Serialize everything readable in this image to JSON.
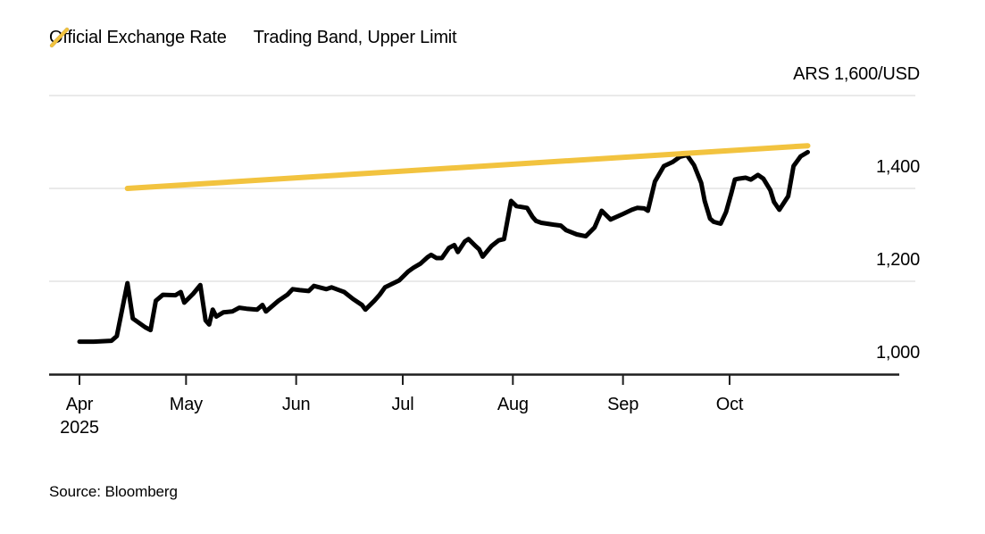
{
  "legend": {
    "items": [
      {
        "label": "Official Exchange Rate",
        "swatch": "black-slash-icon",
        "color": "#000000"
      },
      {
        "label": "Trading Band, Upper Limit",
        "swatch": "yellow-slash-icon",
        "color": "#F2C33F"
      }
    ]
  },
  "axis_unit_label": "ARS 1,600/USD",
  "source": "Source: Bloomberg",
  "colors": {
    "official": "#000000",
    "band": "#F2C33F",
    "gridline": "#E4E4E4",
    "axis": "#1F1F1F",
    "text": "#000000"
  },
  "chart_data": {
    "type": "line",
    "title": "",
    "xlabel": "",
    "ylabel": "ARS/USD",
    "ylim": [
      1000,
      1600
    ],
    "grid": "horizontal",
    "legend_position": "top-left",
    "x_start_date": "2025-04-01",
    "x_unit": "days since 2025-04-01",
    "x_ticks": [
      {
        "label": "Apr",
        "sublabel": "2025",
        "day": 0
      },
      {
        "label": "May",
        "day": 30
      },
      {
        "label": "Jun",
        "day": 61
      },
      {
        "label": "Jul",
        "day": 91
      },
      {
        "label": "Aug",
        "day": 122
      },
      {
        "label": "Sep",
        "day": 153
      },
      {
        "label": "Oct",
        "day": 183
      }
    ],
    "y_ticks": [
      {
        "label": "1,000",
        "value": 1000
      },
      {
        "label": "1,200",
        "value": 1200
      },
      {
        "label": "1,400",
        "value": 1400
      },
      {
        "label": "ARS 1,600/USD",
        "value": 1600
      }
    ],
    "y_gridline_values": [
      1200,
      1400,
      1600
    ],
    "series": [
      {
        "name": "Official Exchange Rate",
        "color": "#000000",
        "data_name": "official-exchange-rate-line",
        "points": [
          [
            0,
            1070
          ],
          [
            4,
            1070
          ],
          [
            9,
            1072
          ],
          [
            10.5,
            1082
          ],
          [
            13.5,
            1196
          ],
          [
            15,
            1120
          ],
          [
            18.5,
            1101
          ],
          [
            20,
            1095
          ],
          [
            21.5,
            1158
          ],
          [
            23.5,
            1171
          ],
          [
            27,
            1170
          ],
          [
            28.5,
            1177
          ],
          [
            29.5,
            1154
          ],
          [
            32,
            1173
          ],
          [
            34,
            1192
          ],
          [
            35.5,
            1116
          ],
          [
            36.5,
            1107
          ],
          [
            37.5,
            1139
          ],
          [
            38.5,
            1124
          ],
          [
            40.5,
            1133
          ],
          [
            43,
            1135
          ],
          [
            45,
            1143
          ],
          [
            47,
            1141
          ],
          [
            50,
            1139
          ],
          [
            51.5,
            1149
          ],
          [
            52.5,
            1135
          ],
          [
            56,
            1158
          ],
          [
            58.5,
            1171
          ],
          [
            60,
            1183
          ],
          [
            62,
            1181
          ],
          [
            64.5,
            1179
          ],
          [
            66,
            1190
          ],
          [
            69.5,
            1183
          ],
          [
            71,
            1187
          ],
          [
            74.5,
            1177
          ],
          [
            77,
            1162
          ],
          [
            79.5,
            1149
          ],
          [
            80.5,
            1139
          ],
          [
            83,
            1158
          ],
          [
            84.5,
            1171
          ],
          [
            86,
            1187
          ],
          [
            90,
            1202
          ],
          [
            92.5,
            1221
          ],
          [
            94,
            1229
          ],
          [
            96,
            1238
          ],
          [
            98,
            1252
          ],
          [
            99,
            1257
          ],
          [
            100.5,
            1250
          ],
          [
            102,
            1250
          ],
          [
            104,
            1272
          ],
          [
            105.5,
            1278
          ],
          [
            106.5,
            1263
          ],
          [
            108.5,
            1286
          ],
          [
            109.5,
            1291
          ],
          [
            111.5,
            1276
          ],
          [
            112.5,
            1269
          ],
          [
            113.5,
            1253
          ],
          [
            116,
            1276
          ],
          [
            118,
            1288
          ],
          [
            119.5,
            1291
          ],
          [
            121.5,
            1373
          ],
          [
            123,
            1362
          ],
          [
            126,
            1358
          ],
          [
            127.5,
            1339
          ],
          [
            128.5,
            1330
          ],
          [
            130,
            1326
          ],
          [
            133.5,
            1322
          ],
          [
            135.5,
            1320
          ],
          [
            137,
            1310
          ],
          [
            140,
            1301
          ],
          [
            142.5,
            1297
          ],
          [
            145,
            1316
          ],
          [
            147,
            1352
          ],
          [
            149.5,
            1333
          ],
          [
            153,
            1345
          ],
          [
            155.5,
            1354
          ],
          [
            157,
            1358
          ],
          [
            159,
            1357
          ],
          [
            160,
            1352
          ],
          [
            162,
            1415
          ],
          [
            164.5,
            1448
          ],
          [
            167,
            1457
          ],
          [
            169,
            1468
          ],
          [
            171,
            1472
          ],
          [
            173,
            1450
          ],
          [
            175,
            1412
          ],
          [
            176,
            1373
          ],
          [
            177.5,
            1335
          ],
          [
            178.5,
            1328
          ],
          [
            179.5,
            1326
          ],
          [
            180.5,
            1324
          ],
          [
            182,
            1349
          ],
          [
            183.5,
            1390
          ],
          [
            184.5,
            1419
          ],
          [
            185.5,
            1421
          ],
          [
            187.5,
            1423
          ],
          [
            189,
            1419
          ],
          [
            191,
            1429
          ],
          [
            192.5,
            1421
          ],
          [
            194.5,
            1396
          ],
          [
            195.5,
            1371
          ],
          [
            197,
            1354
          ],
          [
            199.5,
            1383
          ],
          [
            201,
            1448
          ],
          [
            203,
            1469
          ],
          [
            205,
            1478
          ]
        ]
      },
      {
        "name": "Trading Band, Upper Limit",
        "color": "#F2C33F",
        "data_name": "trading-band-upper-limit-line",
        "points": [
          [
            13.5,
            1400
          ],
          [
            205,
            1492
          ]
        ]
      }
    ]
  }
}
